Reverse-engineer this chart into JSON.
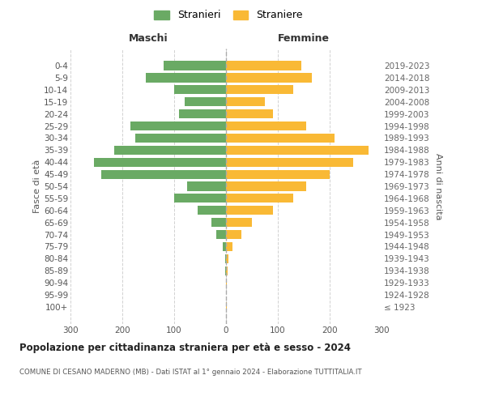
{
  "age_groups": [
    "100+",
    "95-99",
    "90-94",
    "85-89",
    "80-84",
    "75-79",
    "70-74",
    "65-69",
    "60-64",
    "55-59",
    "50-54",
    "45-49",
    "40-44",
    "35-39",
    "30-34",
    "25-29",
    "20-24",
    "15-19",
    "10-14",
    "5-9",
    "0-4"
  ],
  "birth_years": [
    "≤ 1923",
    "1924-1928",
    "1929-1933",
    "1934-1938",
    "1939-1943",
    "1944-1948",
    "1949-1953",
    "1954-1958",
    "1959-1963",
    "1964-1968",
    "1969-1973",
    "1974-1978",
    "1979-1983",
    "1984-1988",
    "1989-1993",
    "1994-1998",
    "1999-2003",
    "2004-2008",
    "2009-2013",
    "2014-2018",
    "2019-2023"
  ],
  "males": [
    0,
    0,
    0,
    2,
    2,
    6,
    18,
    28,
    55,
    100,
    75,
    240,
    255,
    215,
    175,
    185,
    90,
    80,
    100,
    155,
    120
  ],
  "females": [
    1,
    0,
    1,
    3,
    5,
    12,
    30,
    50,
    90,
    130,
    155,
    200,
    245,
    275,
    210,
    155,
    90,
    75,
    130,
    165,
    145
  ],
  "male_color": "#6aaa64",
  "female_color": "#f9b935",
  "background_color": "#ffffff",
  "grid_color": "#cccccc",
  "title": "Popolazione per cittadinanza straniera per età e sesso - 2024",
  "subtitle": "COMUNE DI CESANO MADERNO (MB) - Dati ISTAT al 1° gennaio 2024 - Elaborazione TUTTITALIA.IT",
  "ylabel_left": "Fasce di età",
  "ylabel_right": "Anni di nascita",
  "xlabel_left": "Maschi",
  "xlabel_right": "Femmine",
  "legend_stranieri": "Stranieri",
  "legend_straniere": "Straniere",
  "xlim": 300
}
